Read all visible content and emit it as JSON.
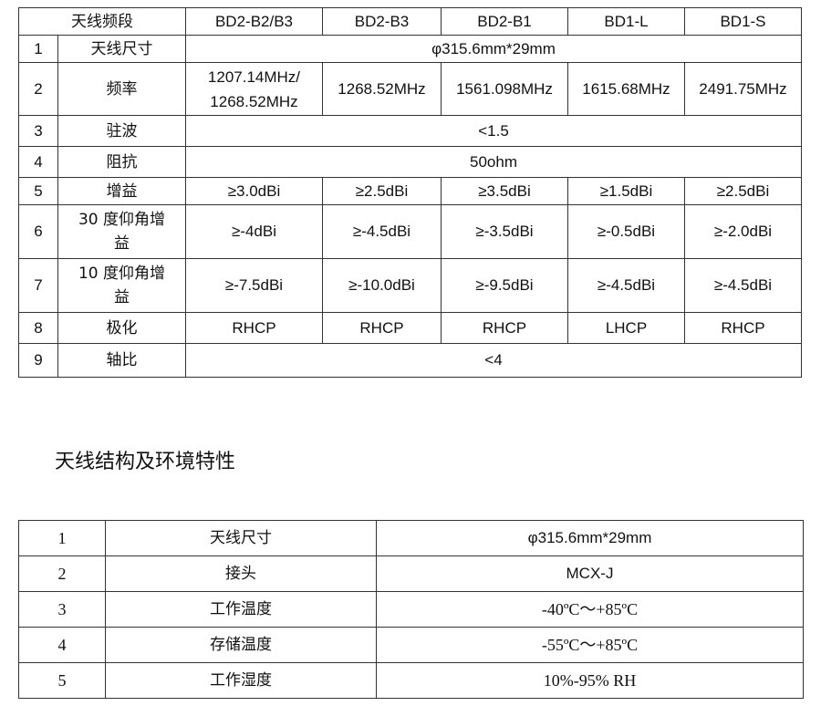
{
  "spec_table": {
    "header": {
      "label": "天线频段",
      "bands": [
        "BD2-B2/B3",
        "BD2-B3",
        "BD2-B1",
        "BD1-L",
        "BD1-S"
      ]
    },
    "rows": [
      {
        "no": "1",
        "param": "天线尺寸",
        "all": "φ315.6mm*29mm"
      },
      {
        "no": "2",
        "param": "频率",
        "values": [
          "1207.14MHz/ 1268.52MHz",
          "1268.52MHz",
          "1561.098MHz",
          "1615.68MHz",
          "2491.75MHz"
        ]
      },
      {
        "no": "3",
        "param": "驻波",
        "all": "<1.5"
      },
      {
        "no": "4",
        "param": "阻抗",
        "all": "50ohm"
      },
      {
        "no": "5",
        "param": "增益",
        "values": [
          "≥3.0dBi",
          "≥2.5dBi",
          "≥3.5dBi",
          "≥1.5dBi",
          "≥2.5dBi"
        ]
      },
      {
        "no": "6",
        "param": "30 度仰角增益",
        "values": [
          "≥-4dBi",
          "≥-4.5dBi",
          "≥-3.5dBi",
          "≥-0.5dBi",
          "≥-2.0dBi"
        ]
      },
      {
        "no": "7",
        "param": "10 度仰角增益",
        "values": [
          "≥-7.5dBi",
          "≥-10.0dBi",
          "≥-9.5dBi",
          "≥-4.5dBi",
          "≥-4.5dBi"
        ]
      },
      {
        "no": "8",
        "param": "极化",
        "values": [
          "RHCP",
          "RHCP",
          "RHCP",
          "LHCP",
          "RHCP"
        ]
      },
      {
        "no": "9",
        "param": "轴比",
        "all": "<4"
      }
    ]
  },
  "section_title": "天线结构及环境特性",
  "env_table": {
    "rows": [
      {
        "no": "1",
        "param": "天线尺寸",
        "value": "φ315.6mm*29mm"
      },
      {
        "no": "2",
        "param": "接头",
        "value": "MCX-J"
      },
      {
        "no": "3",
        "param": "工作温度",
        "value": "-40ºC～+85ºC"
      },
      {
        "no": "4",
        "param": "存储温度",
        "value": "-55ºC～+85ºC"
      },
      {
        "no": "5",
        "param": "工作湿度",
        "value": "10%-95% RH"
      }
    ]
  }
}
